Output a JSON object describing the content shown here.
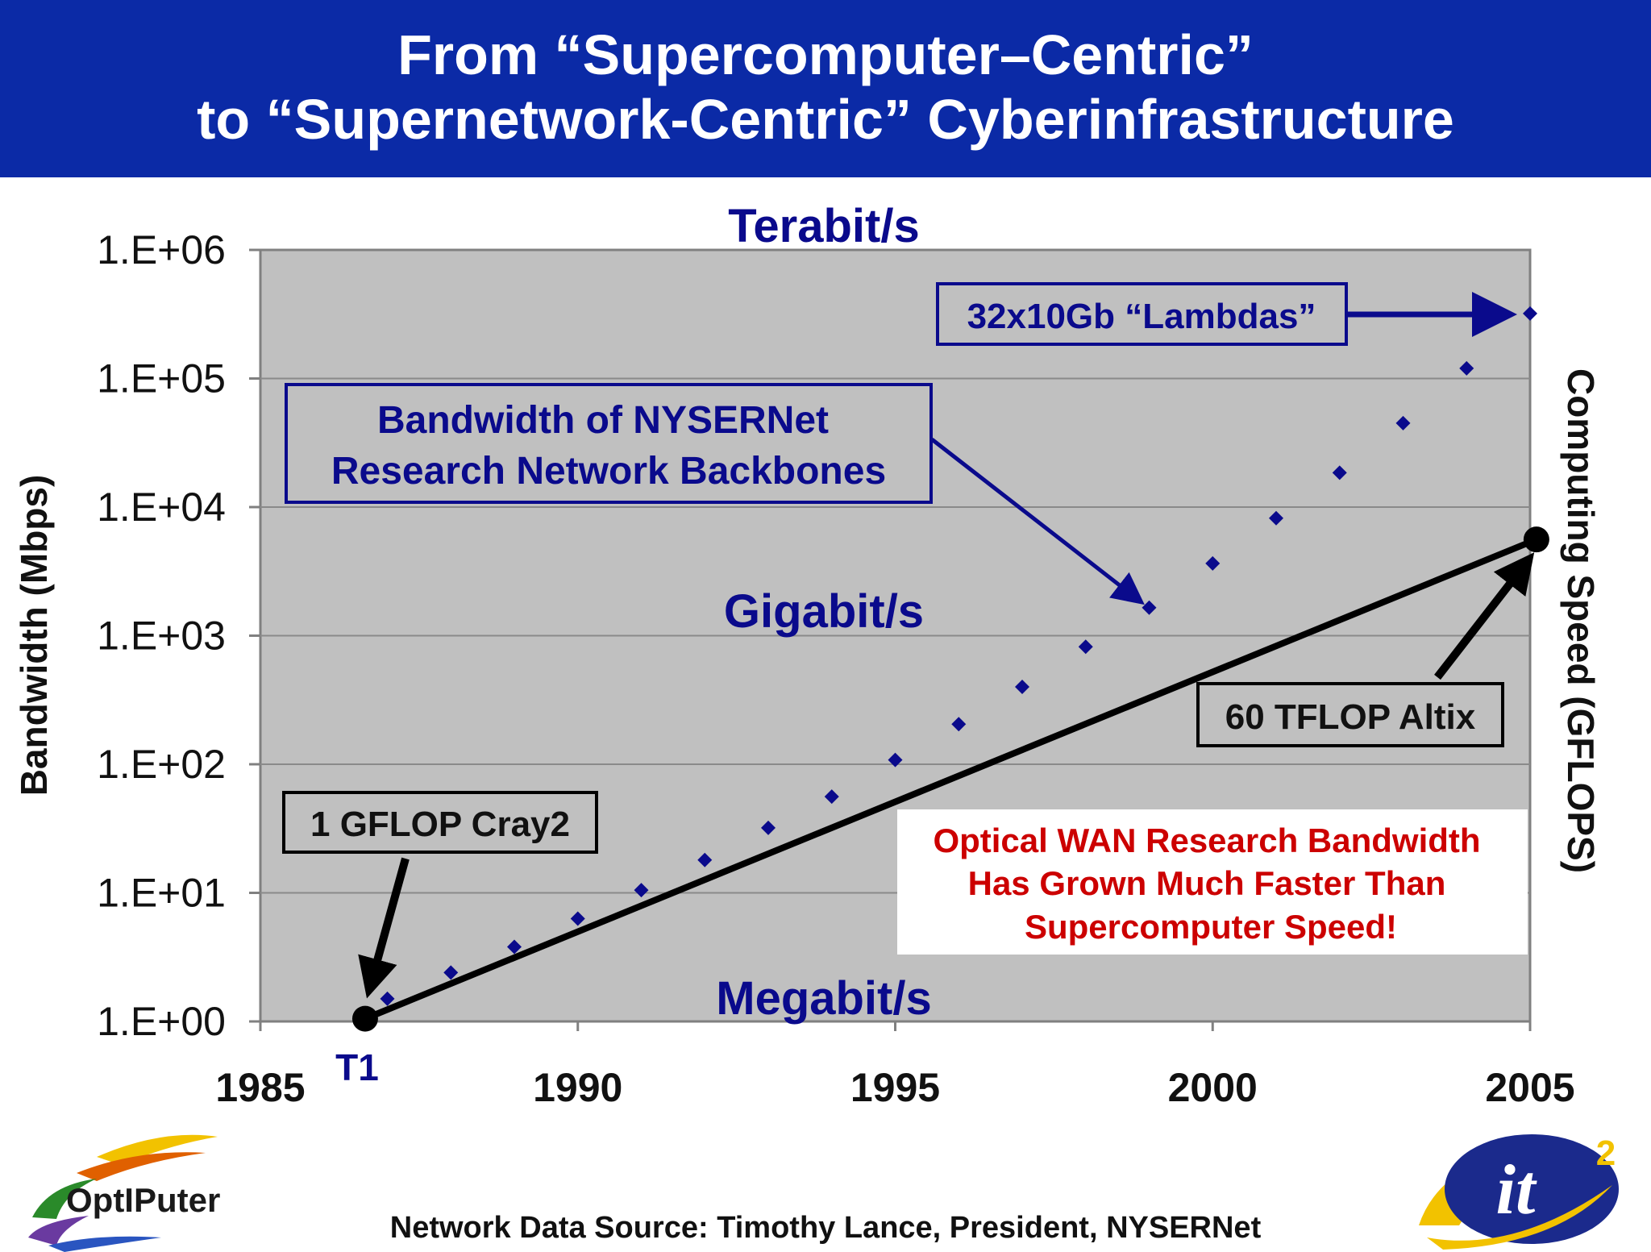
{
  "title": {
    "line1": "From “Supercomputer–Centric”",
    "line2": "to “Supernetwork-Centric” Cyberinfrastructure"
  },
  "colors": {
    "title_bg": "#0b2aa6",
    "plot_bg": "#c0c0c0",
    "navy": "#0a0a8c",
    "red": "#cc0000"
  },
  "chart_data": {
    "type": "scatter",
    "xlabel": "",
    "ylabel": "Bandwidth (Mbps)",
    "y2label": "Computing Speed (GFLOPS)",
    "xlim": [
      1985,
      2005
    ],
    "ylim": [
      1,
      1000000
    ],
    "yscale": "log",
    "grid": true,
    "x_ticks": [
      "1985",
      "1990",
      "1995",
      "2000",
      "2005"
    ],
    "y_ticks": [
      "1.E+00",
      "1.E+01",
      "1.E+02",
      "1.E+03",
      "1.E+04",
      "1.E+05",
      "1.E+06"
    ],
    "series": [
      {
        "marker": "diamond",
        "color": "#0a0a8c",
        "x": [
          1987,
          1988,
          1989,
          1990,
          1991,
          1992,
          1993,
          1994,
          1995,
          1996,
          1997,
          1998,
          1999,
          2000,
          2001,
          2002,
          2003,
          2004,
          2005
        ],
        "y": [
          1.5,
          2.4,
          3.8,
          6.3,
          10.5,
          18,
          32,
          56,
          108,
          205,
          400,
          820,
          1650,
          3650,
          8200,
          18500,
          45000,
          120000,
          320000
        ]
      },
      {
        "marker": "line",
        "color": "#000000",
        "x": [
          1986.65,
          2005.1
        ],
        "y": [
          1.05,
          5600
        ]
      }
    ],
    "region_labels": [
      "Terabit/s",
      "Gigabit/s",
      "Megabit/s"
    ],
    "annotations": {
      "lambdas": "32x10Gb “Lambdas”",
      "nysernet_line1": "Bandwidth of NYSERNet",
      "nysernet_line2": "Research Network Backbones",
      "cray": "1 GFLOP Cray2",
      "altix": "60 TFLOP Altix",
      "t1": "T1",
      "optical_line1": "Optical WAN Research Bandwidth",
      "optical_line2": "Has Grown Much Faster Than",
      "optical_line3": "Supercomputer Speed!"
    }
  },
  "logos": {
    "optiputer": "OptIPuter",
    "it2": "it",
    "it2_sup": "2"
  },
  "source": "Network Data Source: Timothy Lance, President, NYSERNet"
}
